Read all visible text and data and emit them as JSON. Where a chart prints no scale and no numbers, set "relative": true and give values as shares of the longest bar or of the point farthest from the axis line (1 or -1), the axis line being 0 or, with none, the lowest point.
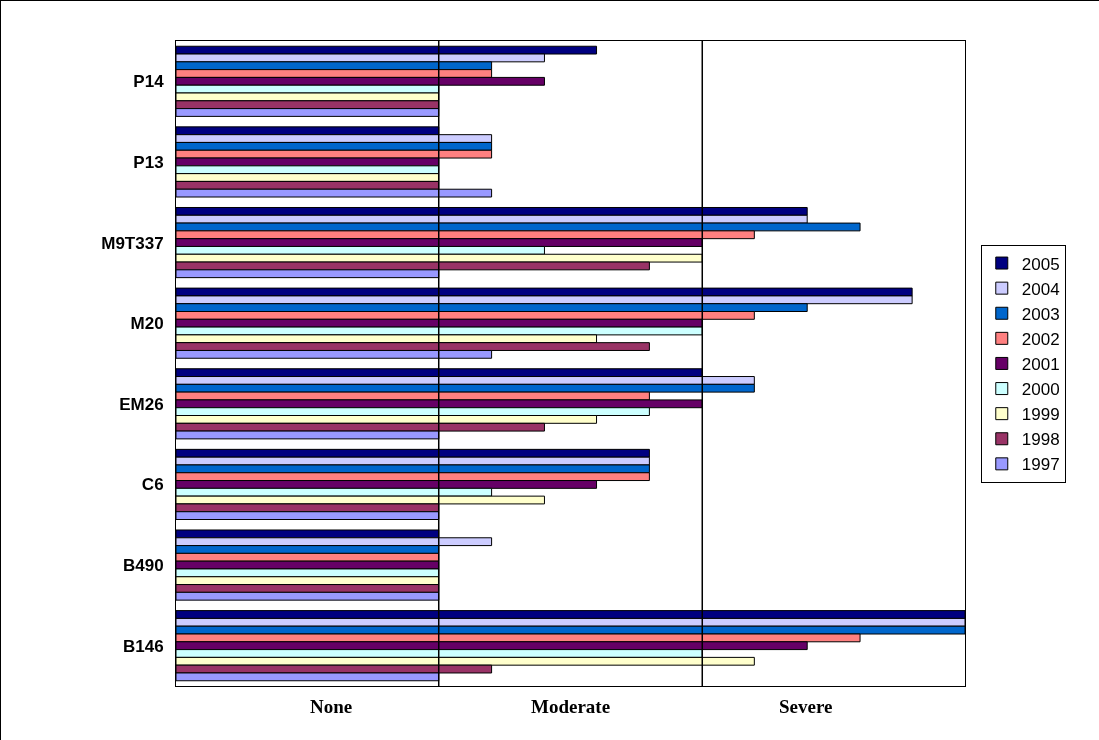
{
  "chart_data": {
    "type": "bar",
    "orientation": "horizontal",
    "relative": true,
    "categories": [
      "P14",
      "P13",
      "M9T337",
      "M20",
      "EM26",
      "C6",
      "B490",
      "B146"
    ],
    "series": [
      {
        "name": "2005",
        "color": "#000080",
        "values": [
          0.533,
          0.333,
          0.8,
          0.933,
          0.667,
          0.6,
          0.333,
          1
        ]
      },
      {
        "name": "2004",
        "color": "#ccccff",
        "values": [
          0.467,
          0.4,
          0.8,
          0.933,
          0.733,
          0.6,
          0.4,
          1
        ]
      },
      {
        "name": "2003",
        "color": "#0066cc",
        "values": [
          0.4,
          0.4,
          0.867,
          0.8,
          0.733,
          0.6,
          0.333,
          1
        ]
      },
      {
        "name": "2002",
        "color": "#ff8080",
        "values": [
          0.4,
          0.4,
          0.733,
          0.733,
          0.6,
          0.6,
          0.333,
          0.867
        ]
      },
      {
        "name": "2001",
        "color": "#660066",
        "values": [
          0.467,
          0.333,
          0.667,
          0.667,
          0.667,
          0.533,
          0.333,
          0.8
        ]
      },
      {
        "name": "2000",
        "color": "#ccffff",
        "values": [
          0.333,
          0.333,
          0.467,
          0.667,
          0.6,
          0.4,
          0.333,
          0.667
        ]
      },
      {
        "name": "1999",
        "color": "#ffffcc",
        "values": [
          0.333,
          0.333,
          0.667,
          0.533,
          0.533,
          0.467,
          0.333,
          0.733
        ]
      },
      {
        "name": "1998",
        "color": "#993366",
        "values": [
          0.333,
          0.333,
          0.6,
          0.6,
          0.467,
          0.333,
          0.333,
          0.4
        ]
      },
      {
        "name": "1997",
        "color": "#9999ff",
        "values": [
          0.333,
          0.4,
          0.333,
          0.4,
          0.333,
          0.333,
          0.333,
          0.333
        ]
      }
    ],
    "annotations": [
      "None",
      "Moderate",
      "Severe"
    ],
    "ref_lines": [
      {
        "axis": "x",
        "value": 0.333,
        "label": null
      },
      {
        "axis": "x",
        "value": 0.667,
        "label": null
      }
    ],
    "legend": "right"
  }
}
